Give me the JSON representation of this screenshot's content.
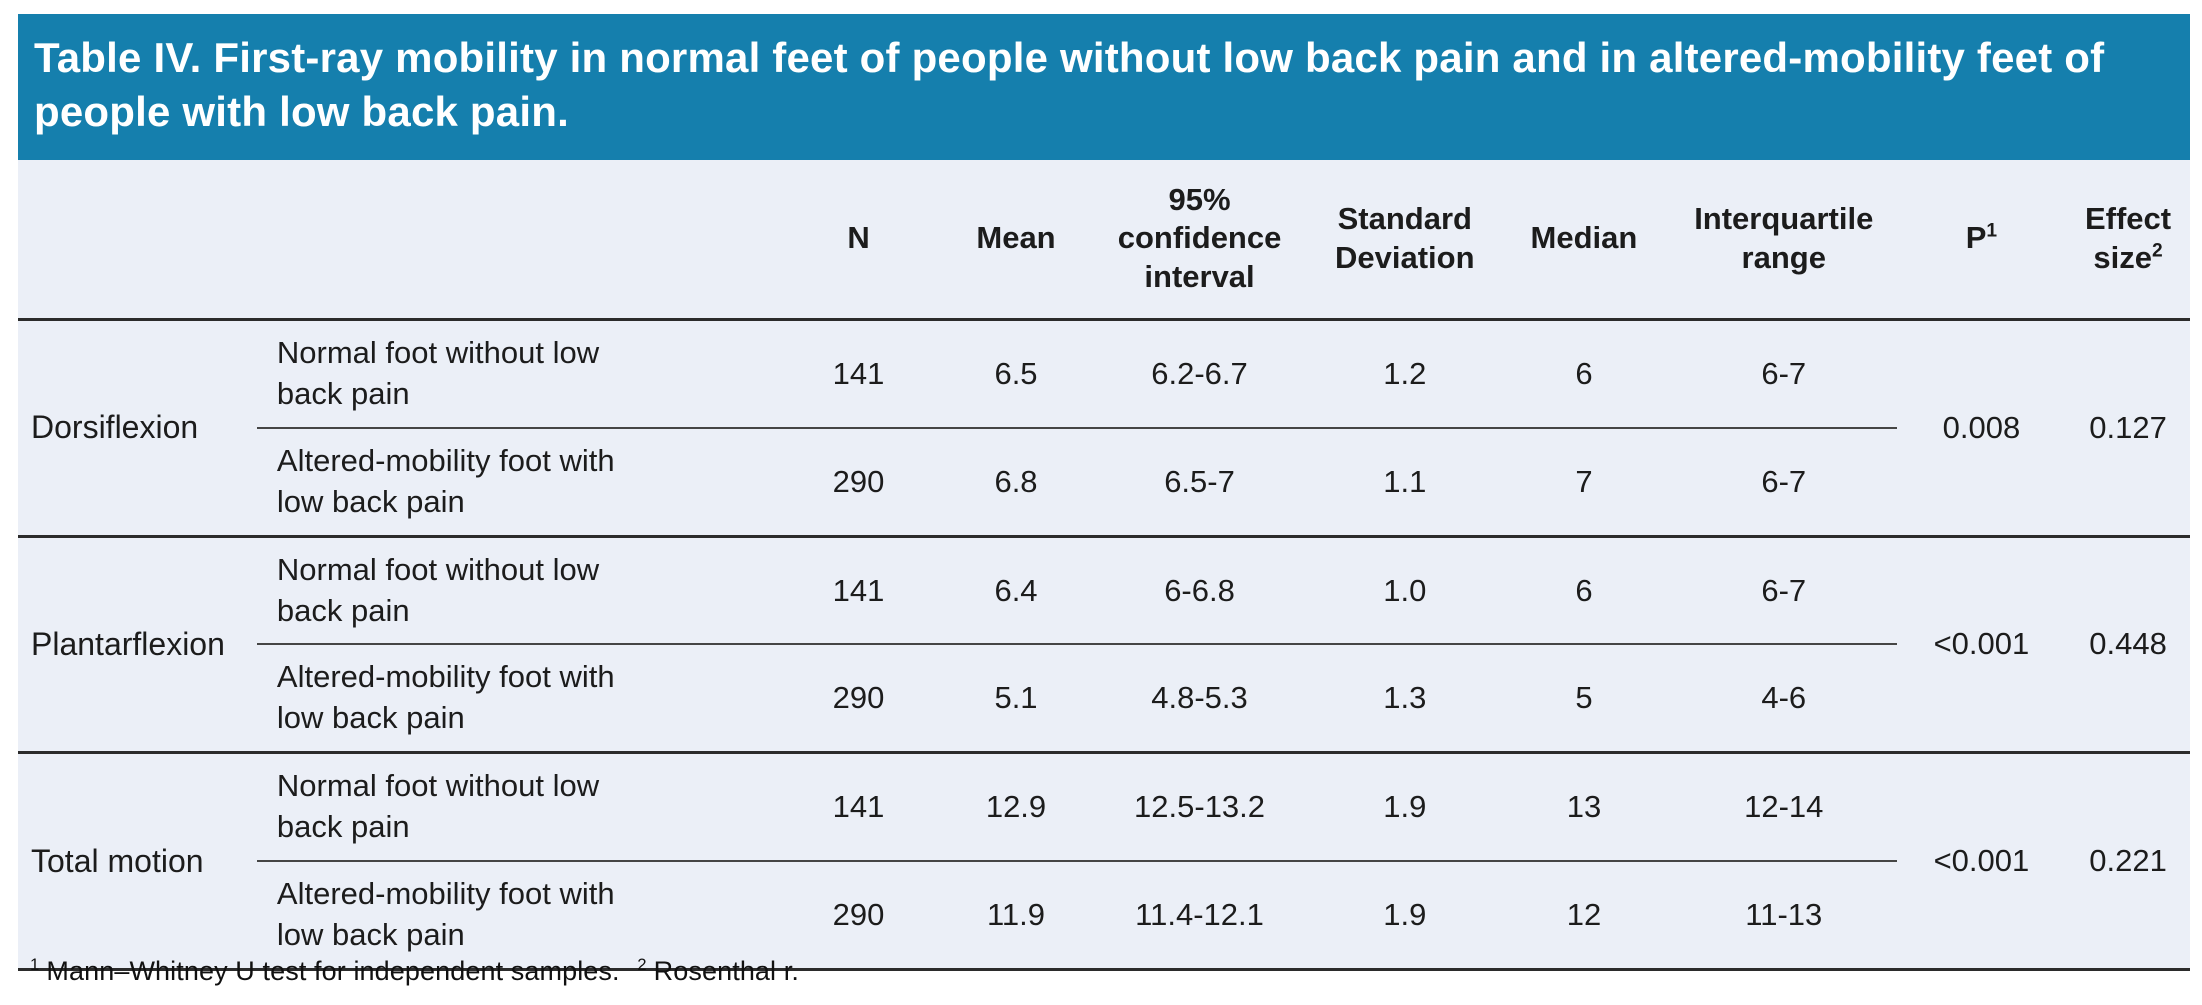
{
  "title": "Table IV. First-ray mobility in normal feet of people without low back pain and in altered-mobility feet of people with low back pain.",
  "colors": {
    "title_bar": "#157fad",
    "table_bg": "#ebeff7",
    "rule_heavy": "#2b2b2b",
    "rule_light": "#454545"
  },
  "columns": {
    "group": "",
    "subgroup": "",
    "n": "N",
    "mean": "Mean",
    "ci": "95% confidence interval",
    "sd": "Standard Deviation",
    "median": "Median",
    "iqr": "Interquartile range",
    "p": {
      "label": "P",
      "sup": "1"
    },
    "effect": {
      "label": "Effect size",
      "sup": "2"
    }
  },
  "groups": [
    {
      "name": "Dorsiflexion",
      "p": "0.008",
      "effect": "0.127",
      "rows": [
        {
          "label": "Normal foot without low back pain",
          "n": "141",
          "mean": "6.5",
          "ci": "6.2-6.7",
          "sd": "1.2",
          "median": "6",
          "iqr": "6-7"
        },
        {
          "label": "Altered-mobility foot with low back pain",
          "n": "290",
          "mean": "6.8",
          "ci": "6.5-7",
          "sd": "1.1",
          "median": "7",
          "iqr": "6-7"
        }
      ]
    },
    {
      "name": "Plantarflexion",
      "p": "<0.001",
      "effect": "0.448",
      "rows": [
        {
          "label": "Normal foot without low back pain",
          "n": "141",
          "mean": "6.4",
          "ci": "6-6.8",
          "sd": "1.0",
          "median": "6",
          "iqr": "6-7"
        },
        {
          "label": "Altered-mobility foot with low back pain",
          "n": "290",
          "mean": "5.1",
          "ci": "4.8-5.3",
          "sd": "1.3",
          "median": "5",
          "iqr": "4-6"
        }
      ]
    },
    {
      "name": "Total motion",
      "p": "<0.001",
      "effect": "0.221",
      "rows": [
        {
          "label": "Normal foot without low back pain",
          "n": "141",
          "mean": "12.9",
          "ci": "12.5-13.2",
          "sd": "1.9",
          "median": "13",
          "iqr": "12-14"
        },
        {
          "label": "Altered-mobility foot with low back pain",
          "n": "290",
          "mean": "11.9",
          "ci": "11.4-12.1",
          "sd": "1.9",
          "median": "12",
          "iqr": "11-13"
        }
      ]
    }
  ],
  "footnote": {
    "marker1": "1",
    "text1": "Mann–Whitney U test for independent samples.",
    "marker2": "2",
    "text2": "Rosenthal r."
  }
}
